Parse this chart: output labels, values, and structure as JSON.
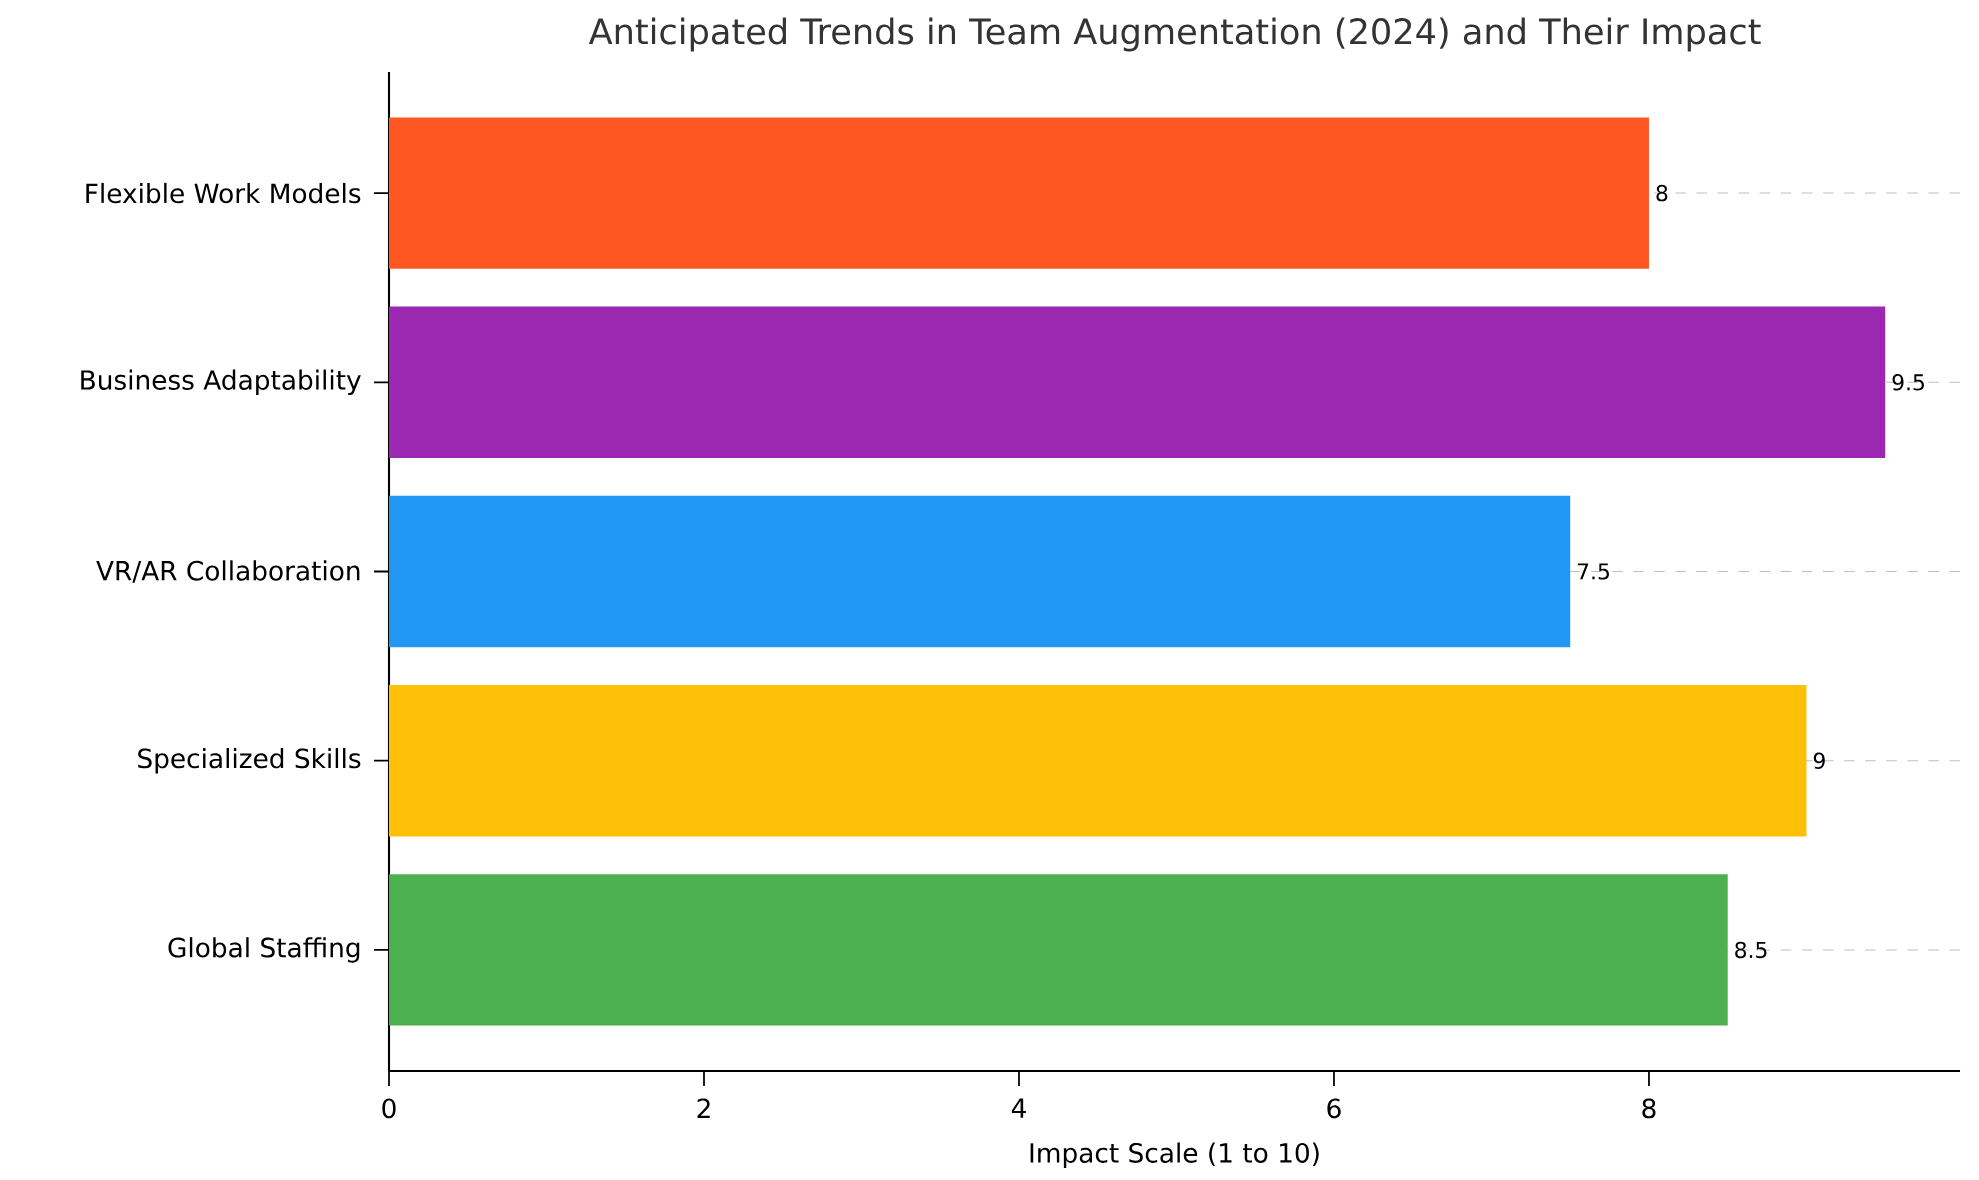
{
  "chart_data": {
    "type": "bar",
    "orientation": "horizontal",
    "title": "Anticipated Trends in Team Augmentation (2024) and Their Impact",
    "xlabel": "Impact Scale (1 to 10)",
    "categories": [
      "Flexible Work Models",
      "Business Adaptability",
      "VR/AR Collaboration",
      "Specialized Skills",
      "Global Staffing"
    ],
    "values": [
      8,
      9.5,
      7.5,
      9,
      8.5
    ],
    "colors": [
      "#ff5722",
      "#9c27b0",
      "#2196f3",
      "#ffc107",
      "#4caf50"
    ],
    "xlim": [
      0,
      9.975
    ],
    "xticks": [
      0,
      2,
      4,
      6,
      8
    ],
    "grid": "y",
    "data_labels": true
  }
}
